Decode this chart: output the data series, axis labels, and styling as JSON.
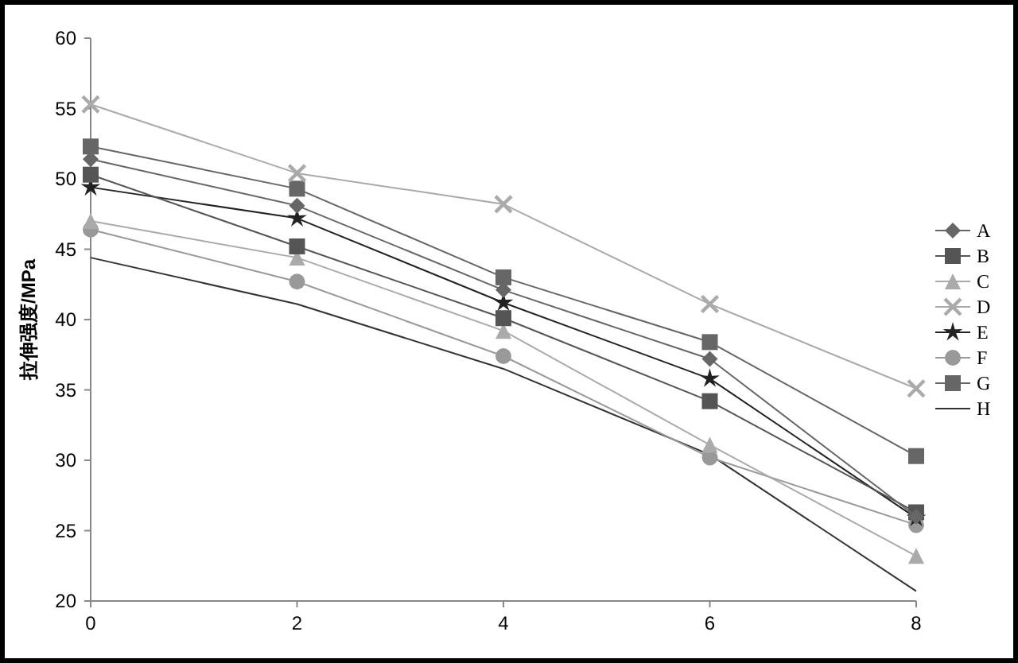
{
  "chart_data": {
    "type": "line",
    "ylabel": "拉伸强度/MPa",
    "x": [
      0,
      2,
      4,
      6,
      8
    ],
    "xlim": [
      0,
      8
    ],
    "xticks": [
      0,
      2,
      4,
      6,
      8
    ],
    "ylim": [
      20,
      60
    ],
    "yticks": [
      20,
      25,
      30,
      35,
      40,
      45,
      50,
      55,
      60
    ],
    "legend": "right",
    "grid": false,
    "series": [
      {
        "name": "A",
        "color": "#666666",
        "marker": "diamond",
        "values": [
          51.4,
          48.1,
          42.1,
          37.2,
          26.0
        ]
      },
      {
        "name": "B",
        "color": "#555555",
        "marker": "square",
        "values": [
          50.3,
          45.2,
          40.1,
          34.2,
          26.3
        ]
      },
      {
        "name": "C",
        "color": "#aaaaaa",
        "marker": "triangle",
        "values": [
          47.0,
          44.4,
          39.2,
          31.1,
          23.2
        ]
      },
      {
        "name": "D",
        "color": "#aaaaaa",
        "marker": "cross",
        "values": [
          55.3,
          50.4,
          48.2,
          41.1,
          35.1
        ]
      },
      {
        "name": "E",
        "color": "#222222",
        "marker": "star",
        "values": [
          49.4,
          47.2,
          41.2,
          35.8,
          25.9
        ]
      },
      {
        "name": "F",
        "color": "#999999",
        "marker": "circle",
        "values": [
          46.4,
          42.7,
          37.4,
          30.2,
          25.4
        ]
      },
      {
        "name": "G",
        "color": "#666666",
        "marker": "square",
        "values": [
          52.3,
          49.3,
          43.0,
          38.4,
          30.3
        ]
      },
      {
        "name": "H",
        "color": "#333333",
        "marker": "none",
        "values": [
          44.4,
          41.1,
          36.5,
          30.4,
          20.7
        ]
      }
    ]
  }
}
